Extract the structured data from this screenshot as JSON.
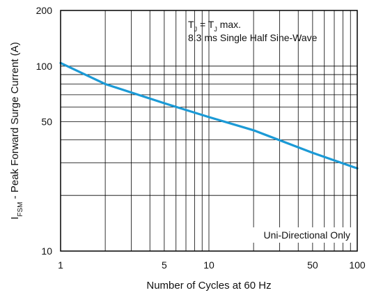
{
  "chart_data": {
    "type": "line",
    "x_scale": "log",
    "y_scale": "log",
    "xlabel": "Number of Cycles at 60 Hz",
    "ylabel": {
      "prefix": "I",
      "subscript": "FSM",
      "suffix": " - Peak Forward Surge Current (A)"
    },
    "xlim": [
      1,
      100
    ],
    "ylim": [
      10,
      200
    ],
    "grid": true,
    "x_ticks": [
      {
        "value": 1,
        "label": "1"
      },
      {
        "value": 5,
        "label": "5"
      },
      {
        "value": 10,
        "label": "10"
      },
      {
        "value": 50,
        "label": "50"
      },
      {
        "value": 100,
        "label": "100"
      }
    ],
    "y_ticks": [
      {
        "value": 10,
        "label": "10"
      },
      {
        "value": 50,
        "label": "50"
      },
      {
        "value": 100,
        "label": "100"
      },
      {
        "value": 200,
        "label": "200"
      }
    ],
    "x_gridlines": [
      1,
      2,
      3,
      4,
      5,
      6,
      7,
      8,
      9,
      10,
      20,
      30,
      40,
      50,
      60,
      70,
      80,
      90,
      100
    ],
    "y_gridlines": [
      10,
      20,
      30,
      40,
      50,
      60,
      70,
      80,
      90,
      100,
      200
    ],
    "series": [
      {
        "color": "#1b9ad6",
        "points": [
          {
            "x": 1,
            "y": 104
          },
          {
            "x": 2,
            "y": 80
          },
          {
            "x": 5,
            "y": 63
          },
          {
            "x": 10,
            "y": 53
          },
          {
            "x": 20,
            "y": 45
          },
          {
            "x": 50,
            "y": 34
          },
          {
            "x": 100,
            "y": 28
          }
        ]
      }
    ],
    "annotations": {
      "condition_line1": {
        "t1": "T",
        "t1_sub": "J",
        "eq": " = T",
        "t2_sub": "J",
        "rest": " max."
      },
      "condition_line2": "8.3 ms Single Half Sine-Wave",
      "note": "Uni-Directional Only"
    },
    "colors": {
      "line": "#1b9ad6",
      "grid": "#000000",
      "frame": "#000000"
    }
  }
}
